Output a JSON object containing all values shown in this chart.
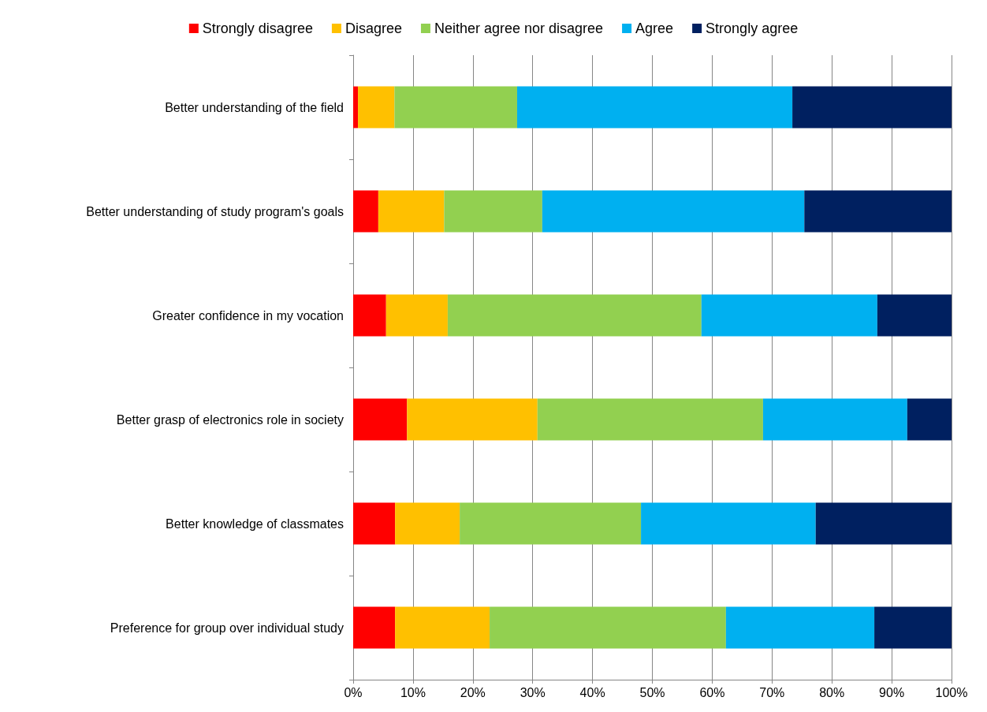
{
  "chart_data": {
    "type": "bar",
    "orientation": "horizontal",
    "stacked": true,
    "categories": [
      "Better understanding of the field",
      "Better understanding of study program's goals",
      "Greater confidence in my vocation",
      "Better grasp of electronics role in society",
      "Better knowledge of classmates",
      "Preference for group over individual study"
    ],
    "series": [
      {
        "name": "Strongly disagree",
        "color": "#ff0000",
        "values": [
          0.8,
          4.2,
          5.5,
          9.0,
          7.0,
          7.0
        ]
      },
      {
        "name": "Disagree",
        "color": "#ffc000",
        "values": [
          6.1,
          11.0,
          10.3,
          21.8,
          10.8,
          15.8
        ]
      },
      {
        "name": "Neither agree nor disagree",
        "color": "#92d050",
        "values": [
          20.5,
          16.4,
          42.4,
          37.7,
          30.3,
          39.5
        ]
      },
      {
        "name": "Agree",
        "color": "#00b0f0",
        "values": [
          46.0,
          43.8,
          29.4,
          24.1,
          29.2,
          24.8
        ]
      },
      {
        "name": "Strongly agree",
        "color": "#002060",
        "values": [
          26.6,
          24.6,
          12.4,
          7.4,
          22.7,
          12.9
        ]
      }
    ],
    "xlim": [
      0,
      100
    ],
    "xticks": [
      {
        "value": 0,
        "label": "0%"
      },
      {
        "value": 10,
        "label": "10%"
      },
      {
        "value": 20,
        "label": "20%"
      },
      {
        "value": 30,
        "label": "30%"
      },
      {
        "value": 40,
        "label": "40%"
      },
      {
        "value": 50,
        "label": "50%"
      },
      {
        "value": 60,
        "label": "60%"
      },
      {
        "value": 70,
        "label": "70%"
      },
      {
        "value": 80,
        "label": "80%"
      },
      {
        "value": 90,
        "label": "90%"
      },
      {
        "value": 100,
        "label": "100%"
      }
    ],
    "grid": "x",
    "legend": "top"
  }
}
